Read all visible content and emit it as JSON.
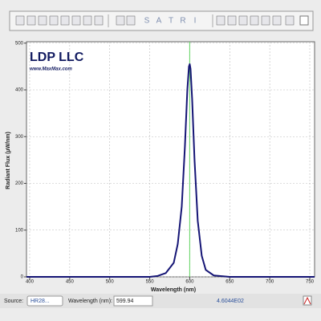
{
  "toolbar": {
    "letters": [
      "S",
      "A",
      "T",
      "R",
      "I"
    ]
  },
  "logo": {
    "title": "LDP LLC",
    "url": "www.MaxMax.com"
  },
  "chart_data": {
    "type": "line",
    "x_label": "Wavelength (nm)",
    "y_label": "Radiant Flux (µW/nm)",
    "x": [
      396,
      550,
      560,
      570,
      580,
      585,
      590,
      594,
      597,
      599,
      600,
      601,
      603,
      606,
      610,
      615,
      620,
      630,
      650,
      756
    ],
    "series": [
      {
        "color": "#151575",
        "values": [
          0,
          0,
          2,
          8,
          30,
          70,
          150,
          280,
          400,
          450,
          455,
          445,
          380,
          250,
          120,
          45,
          15,
          3,
          0,
          0
        ]
      }
    ],
    "xlim": [
      396,
      756
    ],
    "ylim": [
      0,
      503
    ],
    "xticks": [
      400,
      450,
      500,
      550,
      600,
      650,
      700,
      750
    ],
    "yticks": [
      0,
      100,
      200,
      300,
      400,
      500
    ],
    "grid": true,
    "cursor_color": "#5fd35f"
  },
  "status_bar": {
    "source_label": "Source:",
    "source_value": "HR28...",
    "wavelength_label": "Wavelength (nm):",
    "wavelength_value": 599.94,
    "readout": "4.6044E02"
  }
}
